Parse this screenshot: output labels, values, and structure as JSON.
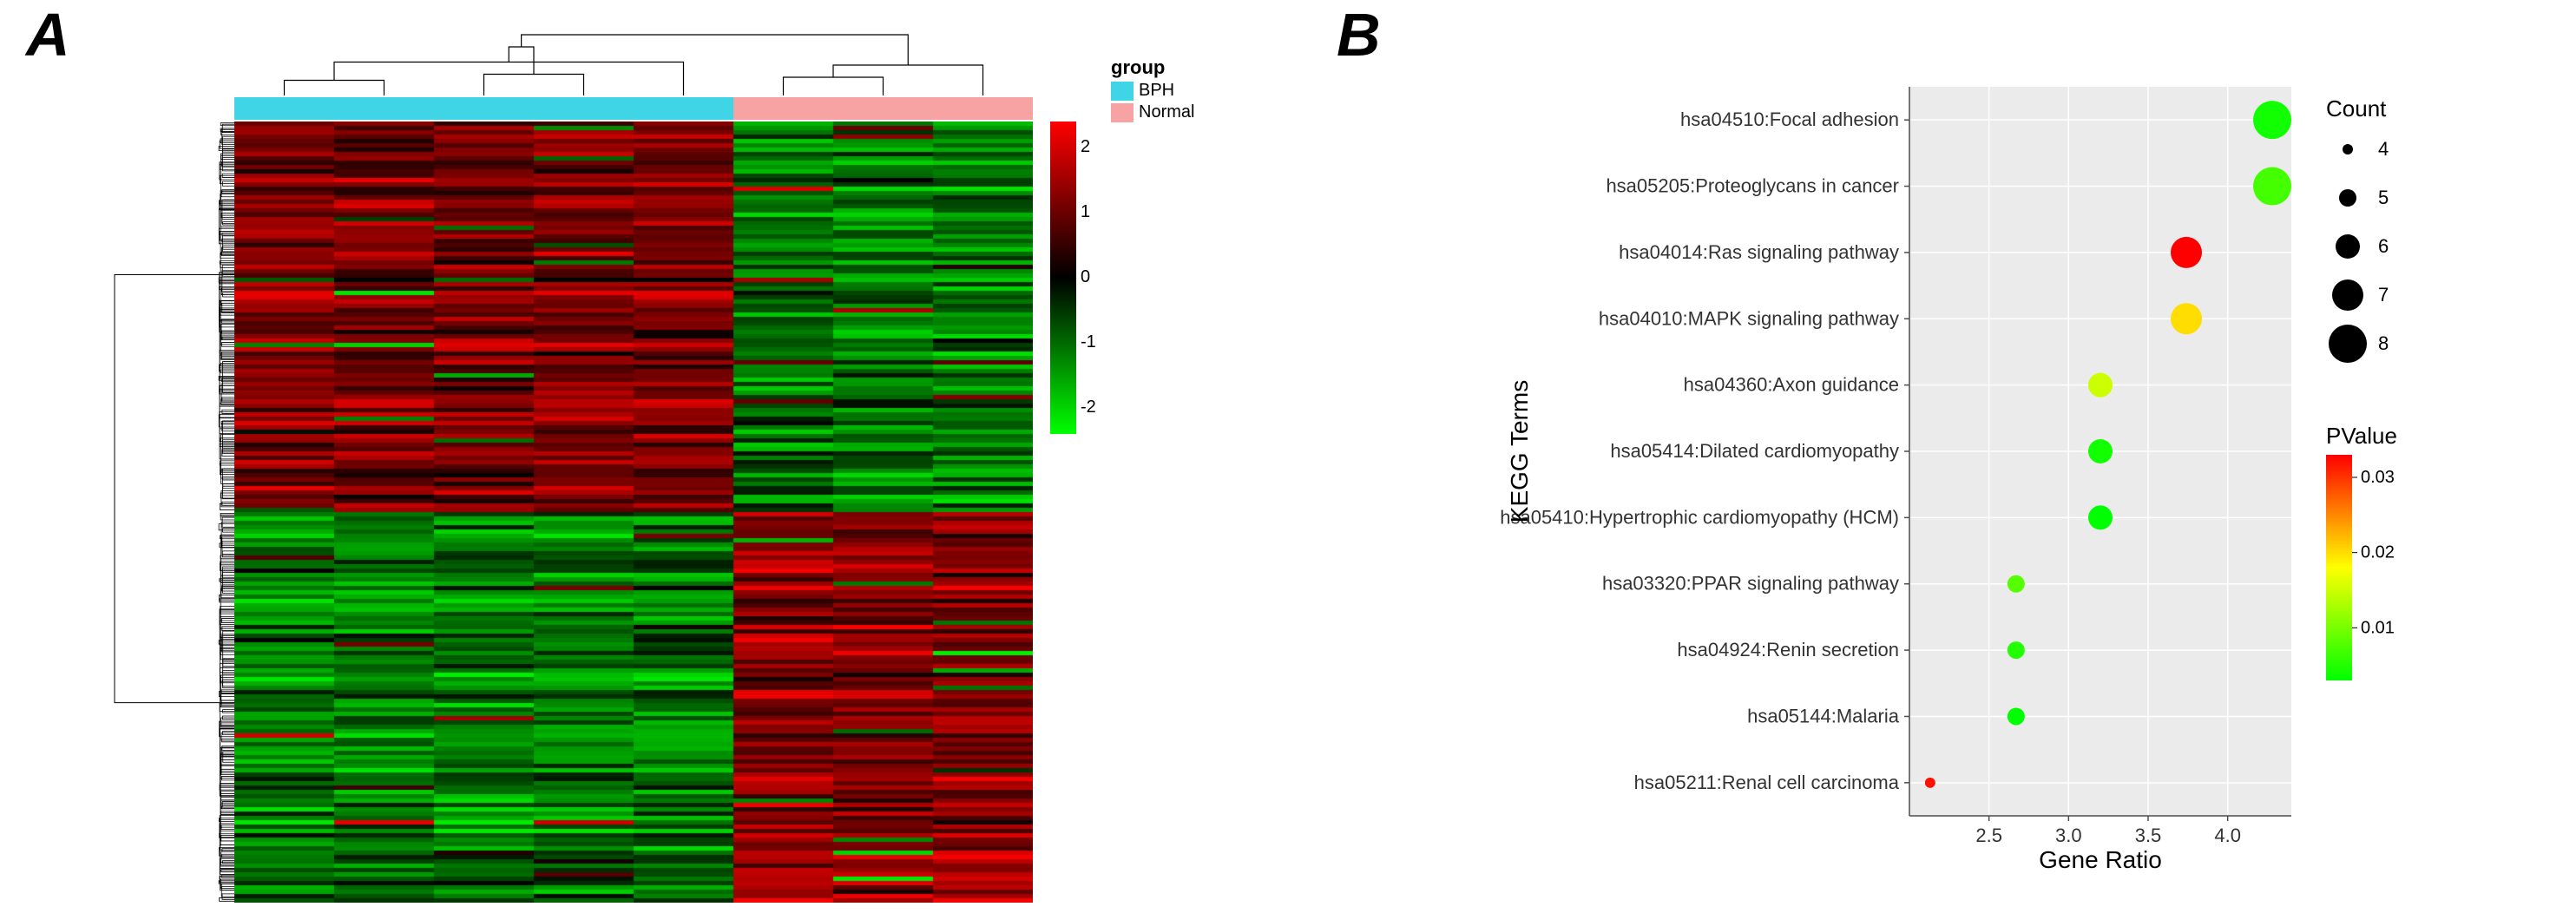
{
  "panelA_label": "A",
  "panelB_label": "B",
  "heatmap": {
    "n_cols": 8,
    "n_rows": 180,
    "group_colors": {
      "BPH": "#40d5e6",
      "Normal": "#f7a3a3"
    },
    "groups": [
      "BPH",
      "BPH",
      "BPH",
      "BPH",
      "BPH",
      "Normal",
      "Normal",
      "Normal"
    ],
    "colorscale": {
      "low": "#00ff00",
      "mid": "#000000",
      "high": "#ff0000",
      "min": -2.4,
      "max": 2.4,
      "ticks": [
        2,
        1,
        0,
        -1,
        -2
      ]
    },
    "group_legend_title": "group",
    "group_labels": [
      "BPH",
      "Normal"
    ],
    "col_tree_merges": [
      [
        0,
        1
      ],
      [
        2,
        3
      ],
      [
        5,
        6
      ],
      [
        8,
        4
      ],
      [
        10,
        7
      ],
      [
        9,
        11
      ],
      [
        12,
        13
      ]
    ],
    "col_tree_heights": [
      0.25,
      0.35,
      0.3,
      0.55,
      0.5,
      0.8,
      1.0
    ]
  },
  "dotplot": {
    "x_axis_title": "Gene Ratio",
    "y_axis_title": "KEGG Terms",
    "x_ticks": [
      2.5,
      3.0,
      3.5,
      4.0
    ],
    "x_domain": [
      2.0,
      4.4
    ],
    "terms": [
      "hsa04510:Focal adhesion",
      "hsa05205:Proteoglycans in cancer",
      "hsa04014:Ras signaling pathway",
      "hsa04010:MAPK signaling pathway",
      "hsa04360:Axon guidance",
      "hsa05414:Dilated cardiomyopathy",
      "hsa05410:Hypertrophic cardiomyopathy (HCM)",
      "hsa03320:PPAR signaling pathway",
      "hsa04924:Renin secretion",
      "hsa05144:Malaria",
      "hsa05211:Renal cell carcinoma"
    ],
    "points": [
      {
        "x": 4.28,
        "count": 8,
        "pvalue": 0.004
      },
      {
        "x": 4.28,
        "count": 8,
        "pvalue": 0.007
      },
      {
        "x": 3.74,
        "count": 7,
        "pvalue": 0.033
      },
      {
        "x": 3.74,
        "count": 7,
        "pvalue": 0.02
      },
      {
        "x": 3.2,
        "count": 6,
        "pvalue": 0.015
      },
      {
        "x": 3.2,
        "count": 6,
        "pvalue": 0.004
      },
      {
        "x": 3.2,
        "count": 6,
        "pvalue": 0.003
      },
      {
        "x": 2.67,
        "count": 5,
        "pvalue": 0.008
      },
      {
        "x": 2.67,
        "count": 5,
        "pvalue": 0.005
      },
      {
        "x": 2.67,
        "count": 5,
        "pvalue": 0.003
      },
      {
        "x": 2.13,
        "count": 4,
        "pvalue": 0.032
      }
    ],
    "count_legend": {
      "title": "Count",
      "values": [
        4,
        5,
        6,
        7,
        8
      ]
    },
    "size_scale": {
      "min_count": 4,
      "max_count": 8,
      "min_r": 6,
      "max_r": 22
    },
    "pvalue_legend": {
      "title": "PValue",
      "min": 0.003,
      "max": 0.033,
      "ticks": [
        0.03,
        0.02,
        0.01
      ],
      "low_color": "#00ff00",
      "mid_color": "#ffff00",
      "high_color": "#ff0000"
    },
    "background": "#ebebeb",
    "panel_bg": "#ffffff",
    "grid_color": "#ffffff"
  }
}
